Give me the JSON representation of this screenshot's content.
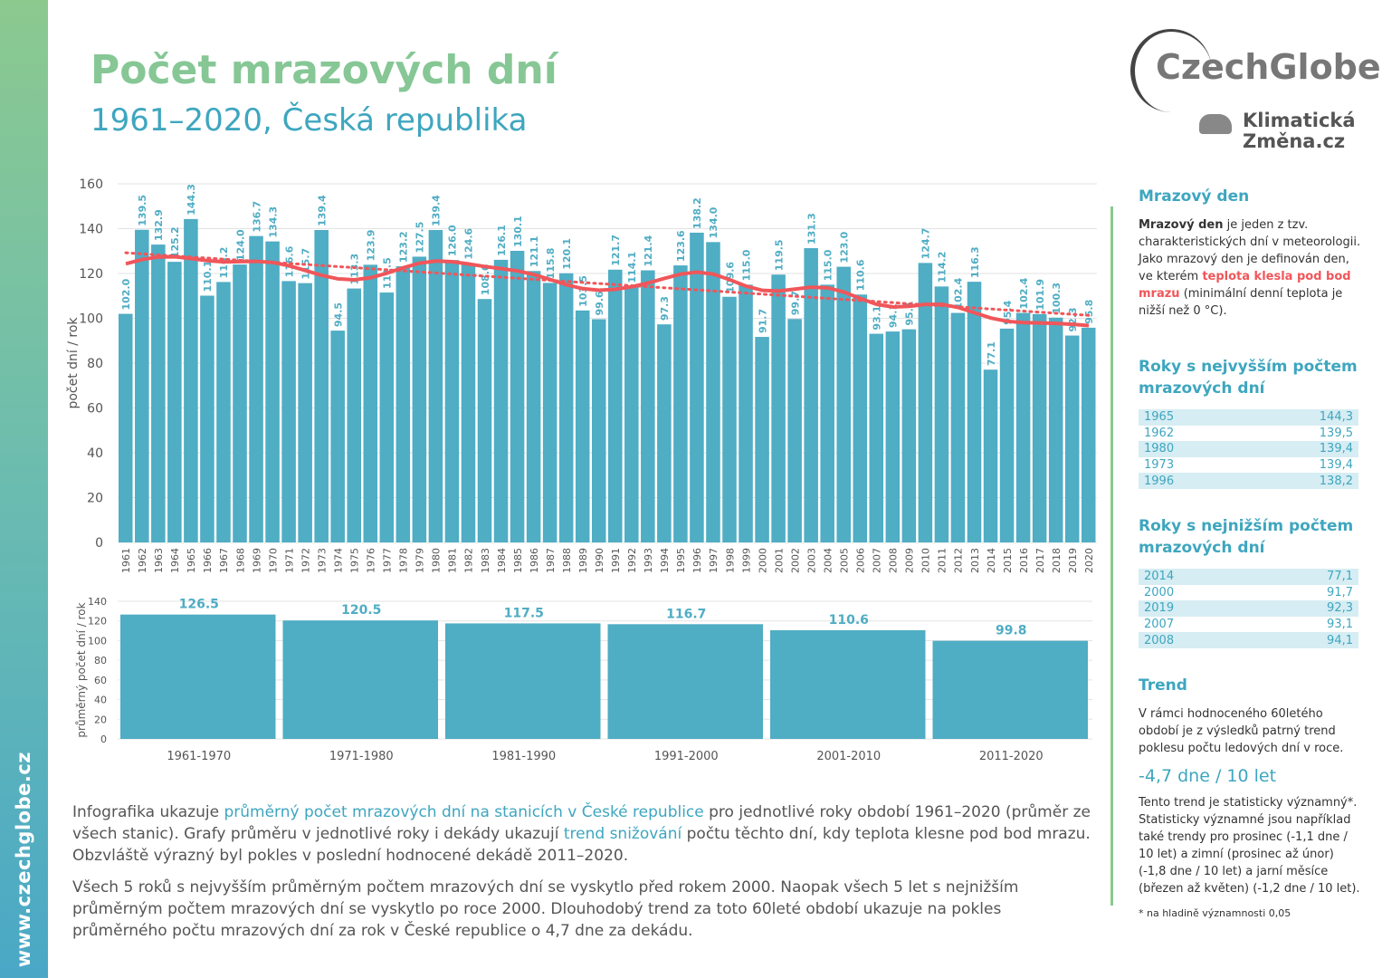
{
  "site": "www.czechglobe.cz",
  "title": "Počet mrazových dní",
  "subtitle": "1961–2020, Česká republika",
  "logo": {
    "brand": "CzechGlobe",
    "partner": "Klimatická Změna.cz"
  },
  "colors": {
    "bar": "#4fadc4",
    "smooth": "#f0565a",
    "trend": "#f0565a",
    "title": "#86c795",
    "accent": "#3ea6bf"
  },
  "chart_data": [
    {
      "type": "bar",
      "ylabel": "počet dní / rok",
      "ylim": [
        0,
        160
      ],
      "yticks": [
        0,
        20,
        40,
        60,
        80,
        100,
        120,
        140,
        160
      ],
      "grid": true,
      "categories": [
        "1961",
        "1962",
        "1963",
        "1964",
        "1965",
        "1966",
        "1967",
        "1968",
        "1969",
        "1970",
        "1971",
        "1972",
        "1973",
        "1974",
        "1975",
        "1976",
        "1977",
        "1978",
        "1979",
        "1980",
        "1981",
        "1982",
        "1983",
        "1984",
        "1985",
        "1986",
        "1987",
        "1988",
        "1989",
        "1990",
        "1991",
        "1992",
        "1993",
        "1994",
        "1995",
        "1996",
        "1997",
        "1998",
        "1999",
        "2000",
        "2001",
        "2002",
        "2003",
        "2004",
        "2005",
        "2006",
        "2007",
        "2008",
        "2009",
        "2010",
        "2011",
        "2012",
        "2013",
        "2014",
        "2015",
        "2016",
        "2017",
        "2018",
        "2019",
        "2020"
      ],
      "values": [
        102.0,
        139.5,
        132.9,
        125.2,
        144.3,
        110.1,
        116.2,
        124.0,
        136.7,
        134.3,
        116.6,
        115.7,
        139.4,
        94.5,
        113.3,
        123.9,
        111.5,
        123.2,
        127.5,
        139.4,
        126.0,
        124.6,
        108.6,
        126.1,
        130.1,
        121.1,
        115.8,
        120.1,
        103.5,
        99.6,
        121.7,
        114.1,
        121.4,
        97.3,
        123.6,
        138.2,
        134.0,
        109.6,
        115.0,
        91.7,
        119.5,
        99.7,
        131.3,
        115.0,
        123.0,
        110.6,
        93.1,
        94.1,
        95.1,
        124.7,
        114.2,
        102.4,
        116.3,
        77.1,
        95.4,
        102.4,
        101.9,
        100.3,
        92.3,
        95.8
      ],
      "overlays": [
        "smoothed line",
        "linear trend (dotted)"
      ]
    },
    {
      "type": "bar",
      "ylabel": "průměrný počet dní / rok",
      "ylim": [
        0,
        140
      ],
      "yticks": [
        0,
        20,
        40,
        60,
        80,
        100,
        120,
        140
      ],
      "grid": true,
      "categories": [
        "1961-1970",
        "1971-1980",
        "1981-1990",
        "1991-2000",
        "2001-2010",
        "2011-2020"
      ],
      "values": [
        126.5,
        120.5,
        117.5,
        116.7,
        110.6,
        99.8
      ]
    }
  ],
  "side": {
    "def_heading": "Mrazový den",
    "def_bold": "Mrazový den",
    "def_text1": " je jeden z tzv. charakteristických dní v meteorologii. Jako mrazový den je definován den, ve kterém ",
    "def_hl": "teplota klesla pod bod mrazu",
    "def_text2": " (minimální denní teplota je nižší než 0 °C).",
    "top_heading": "Roky s nejvyšším počtem mrazových dní",
    "top": [
      {
        "year": "1965",
        "value": "144,3"
      },
      {
        "year": "1962",
        "value": "139,5"
      },
      {
        "year": "1980",
        "value": "139,4"
      },
      {
        "year": "1973",
        "value": "139,4"
      },
      {
        "year": "1996",
        "value": "138,2"
      }
    ],
    "low_heading": "Roky s nejnižším počtem mrazových dní",
    "low": [
      {
        "year": "2014",
        "value": "77,1"
      },
      {
        "year": "2000",
        "value": "91,7"
      },
      {
        "year": "2019",
        "value": "92,3"
      },
      {
        "year": "2007",
        "value": "93,1"
      },
      {
        "year": "2008",
        "value": "94,1"
      }
    ],
    "trend_heading": "Trend",
    "trend_text": "V rámci hodnoceného 60letého období je z výsledků patrný trend poklesu počtu ledových dní v roce.",
    "trend_value": "-4,7 dne / 10 let",
    "trend_sig": "Tento trend je statisticky významný*. Statisticky významné jsou například také trendy pro prosinec (-1,1 dne / 10 let) a zimní (prosinec až únor) (-1,8 dne / 10 let) a jarní měsíce (březen až květen) (-1,2 dne / 10 let).",
    "footnote": "* na hladině významnosti 0,05"
  },
  "para1": {
    "a": "Infografika ukazuje ",
    "b": "průměrný počet mrazových dní na stanicích v České republice",
    "c": " pro jednotlivé roky období 1961–2020 (průměr ze všech stanic). Grafy průměru v jednotlivé roky i dekády ukazují ",
    "d": "trend snižování",
    "e": " počtu těchto dní, kdy teplota klesne pod bod mrazu. Obzvláště výrazný byl pokles v poslední hodnocené dekádě 2011–2020."
  },
  "para2": "Všech 5 roků s nejvyšším průměrným počtem mrazových dní se vyskytlo před rokem 2000. Naopak všech 5 let s nejnižším průměrným počtem mrazových dní se vyskytlo po roce 2000. Dlouhodobý trend za toto 60leté období ukazuje na pokles průměrného počtu mrazových dní za rok v České republice o 4,7 dne za dekádu."
}
